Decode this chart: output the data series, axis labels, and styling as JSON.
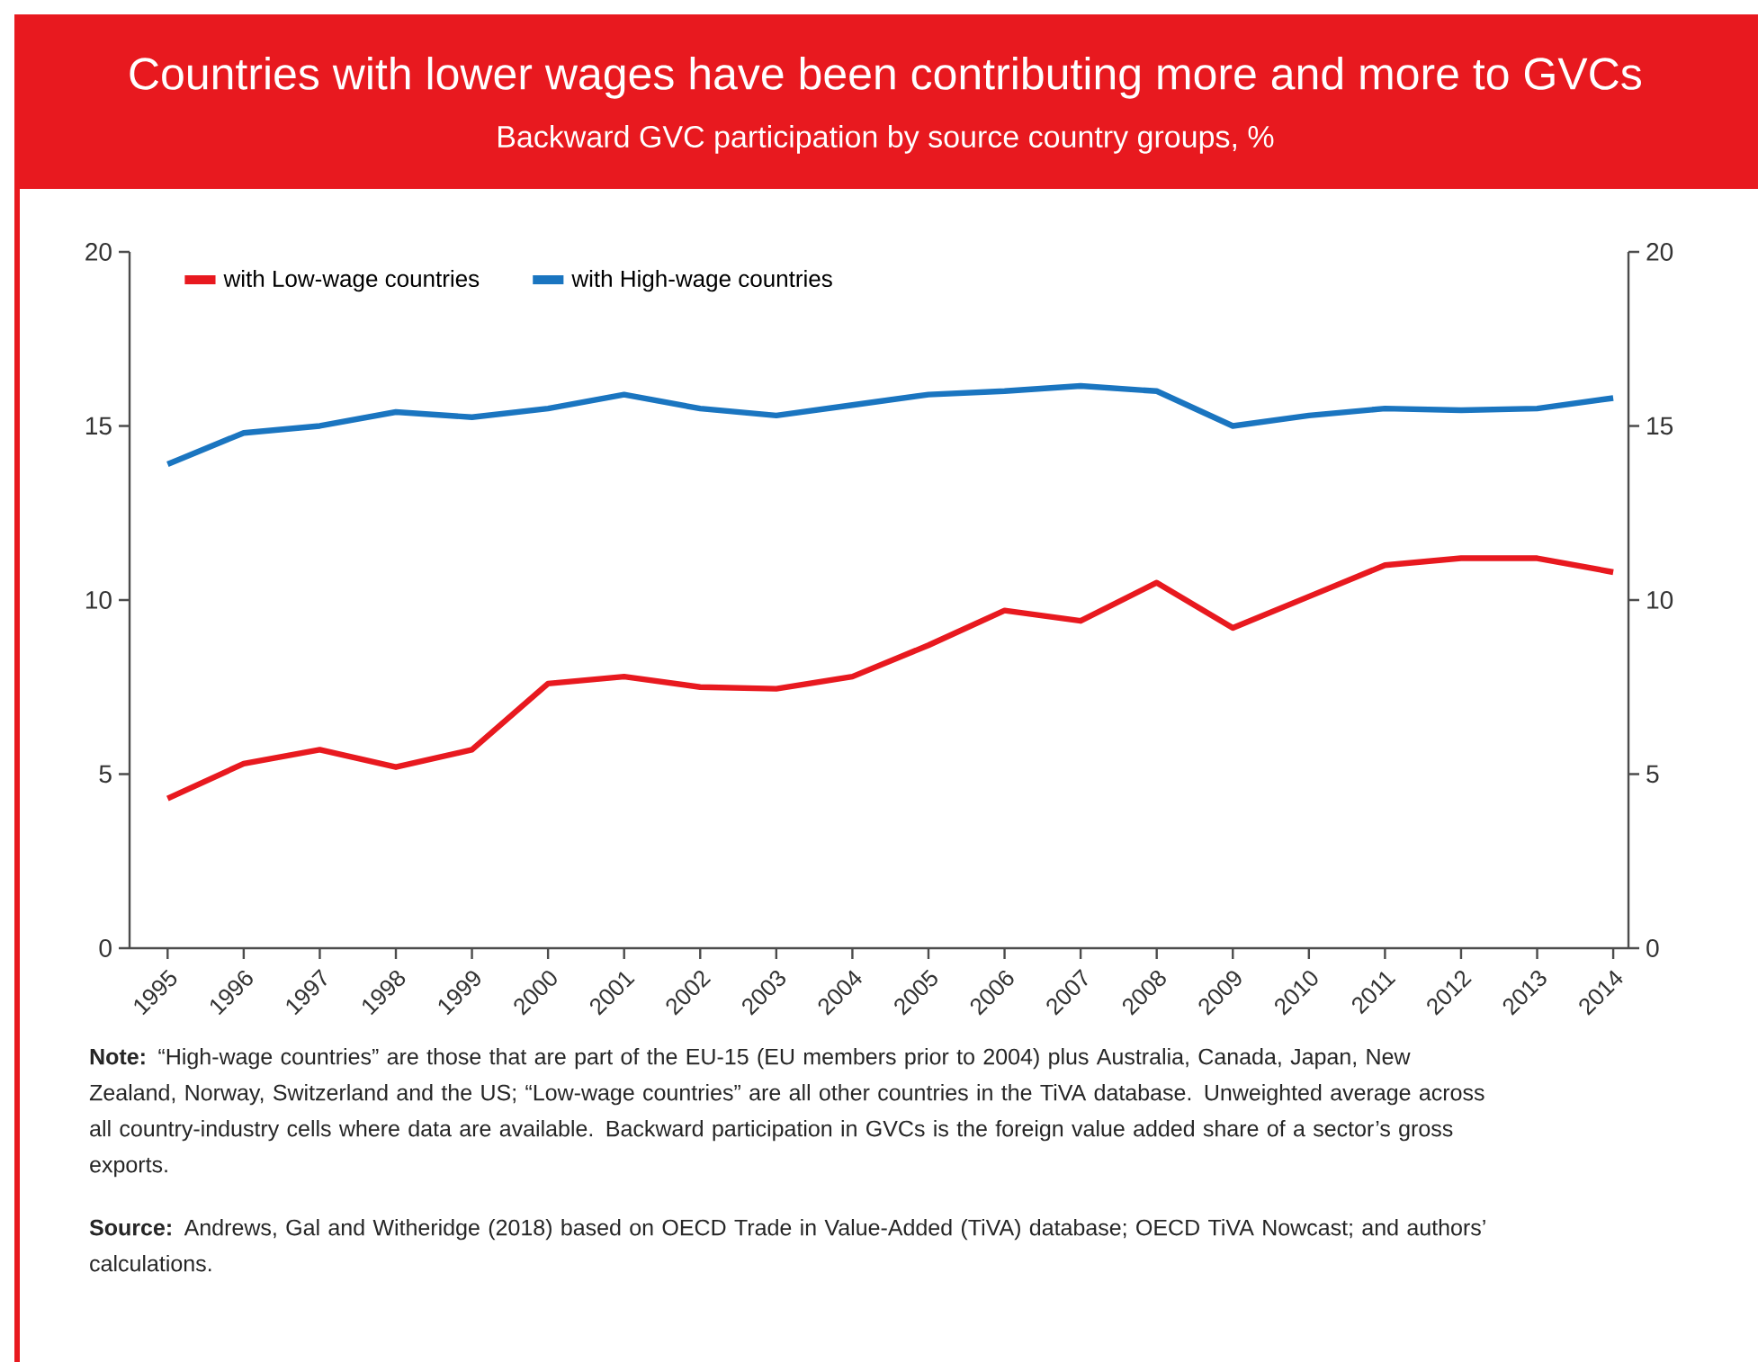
{
  "chart_data": {
    "type": "line",
    "title": "Countries with lower wages have been contributing more and more to GVCs",
    "subtitle": "Backward GVC participation by source country groups, %",
    "categories": [
      "1995",
      "1996",
      "1997",
      "1998",
      "1999",
      "2000",
      "2001",
      "2002",
      "2003",
      "2004",
      "2005",
      "2006",
      "2007",
      "2008",
      "2009",
      "2010",
      "2011",
      "2012",
      "2013",
      "2014"
    ],
    "series": [
      {
        "name": "with Low-wage countries",
        "color": "#e8191f",
        "values": [
          4.3,
          5.3,
          5.7,
          5.2,
          5.7,
          7.6,
          7.8,
          7.5,
          7.45,
          7.8,
          8.7,
          9.7,
          9.4,
          10.5,
          9.2,
          10.1,
          11.0,
          11.2,
          11.2,
          10.8
        ]
      },
      {
        "name": "with High-wage countries",
        "color": "#1a75c0",
        "values": [
          13.9,
          14.8,
          15.0,
          15.4,
          15.25,
          15.5,
          15.9,
          15.5,
          15.3,
          15.6,
          15.9,
          16.0,
          16.15,
          16.0,
          15.0,
          15.3,
          15.5,
          15.45,
          15.5,
          15.8
        ]
      }
    ],
    "ylim": [
      0,
      20
    ],
    "yticks": [
      0,
      5,
      10,
      15,
      20
    ],
    "y2lim": [
      0,
      20
    ],
    "y2ticks": [
      0,
      5,
      10,
      15,
      20
    ],
    "grid": false,
    "legend": "top left",
    "marker": "none",
    "line_style": "solid",
    "annotations": [
      "**Note:** “High-wage countries” are those that are part of the EU-15 (EU members prior to 2004) plus Australia, Canada, Japan, New Zealand, Norway, Switzerland and the US; “Low-wage countries” are all other countries in the TiVA database. Unweighted average across all country-industry cells where data are available. Backward participation in GVCs is the foreign value added share of a sector’s gross exports.",
      "**Source:** Andrews, Gal and Witheridge (2018) based on OECD Trade in Value-Added (TiVA) database; OECD TiVA Nowcast; and authors’ calculations."
    ]
  }
}
